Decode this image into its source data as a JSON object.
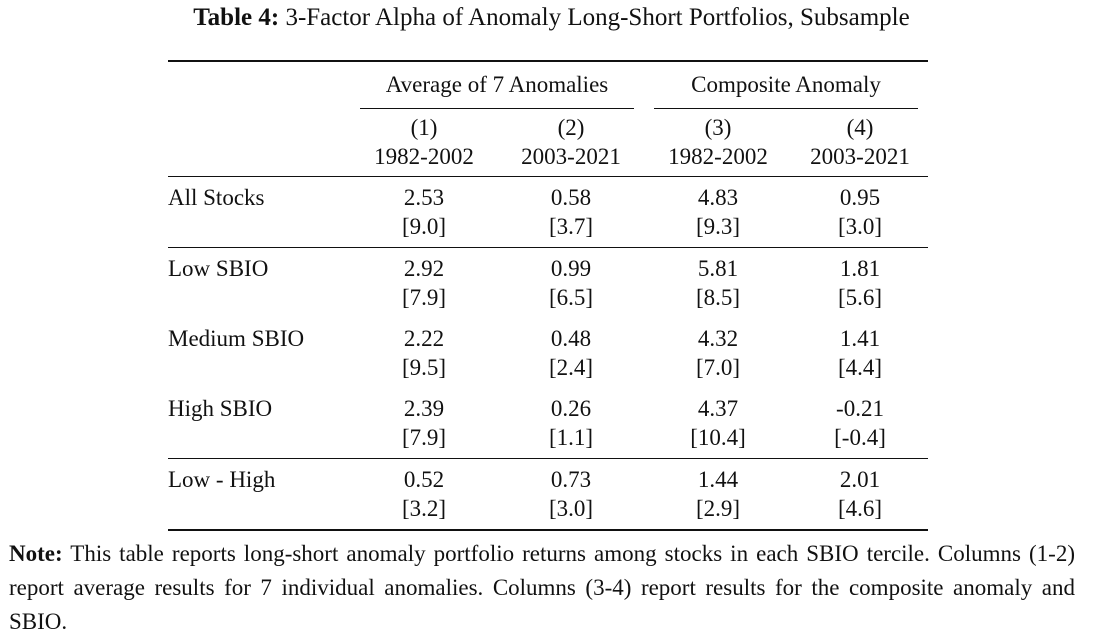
{
  "title": {
    "label": "Table 4:",
    "text": "3-Factor Alpha of Anomaly Long-Short Portfolios, Subsample"
  },
  "table": {
    "groups": [
      "Average of 7 Anomalies",
      "Composite Anomaly"
    ],
    "column_numbers": [
      "(1)",
      "(2)",
      "(3)",
      "(4)"
    ],
    "column_periods": [
      "1982-2002",
      "2003-2021",
      "1982-2002",
      "2003-2021"
    ],
    "rows": [
      {
        "label": "All Stocks",
        "values": [
          "2.53",
          "0.58",
          "4.83",
          "0.95"
        ],
        "tstats": [
          "[9.0]",
          "[3.7]",
          "[9.3]",
          "[3.0]"
        ]
      },
      {
        "label": "Low SBIO",
        "values": [
          "2.92",
          "0.99",
          "5.81",
          "1.81"
        ],
        "tstats": [
          "[7.9]",
          "[6.5]",
          "[8.5]",
          "[5.6]"
        ]
      },
      {
        "label": "Medium SBIO",
        "values": [
          "2.22",
          "0.48",
          "4.32",
          "1.41"
        ],
        "tstats": [
          "[9.5]",
          "[2.4]",
          "[7.0]",
          "[4.4]"
        ]
      },
      {
        "label": "High SBIO",
        "values": [
          "2.39",
          "0.26",
          "4.37",
          "-0.21"
        ],
        "tstats": [
          "[7.9]",
          "[1.1]",
          "[10.4]",
          "[-0.4]"
        ]
      },
      {
        "label": "Low - High",
        "values": [
          "0.52",
          "0.73",
          "1.44",
          "2.01"
        ],
        "tstats": [
          "[3.2]",
          "[3.0]",
          "[2.9]",
          "[4.6]"
        ]
      }
    ]
  },
  "note": {
    "label": "Note:",
    "text": "This table reports long-short anomaly portfolio returns among stocks in each SBIO tercile. Columns (1-2) report average results for 7 individual anomalies. Columns (3-4) report results for the composite anomaly and SBIO."
  }
}
